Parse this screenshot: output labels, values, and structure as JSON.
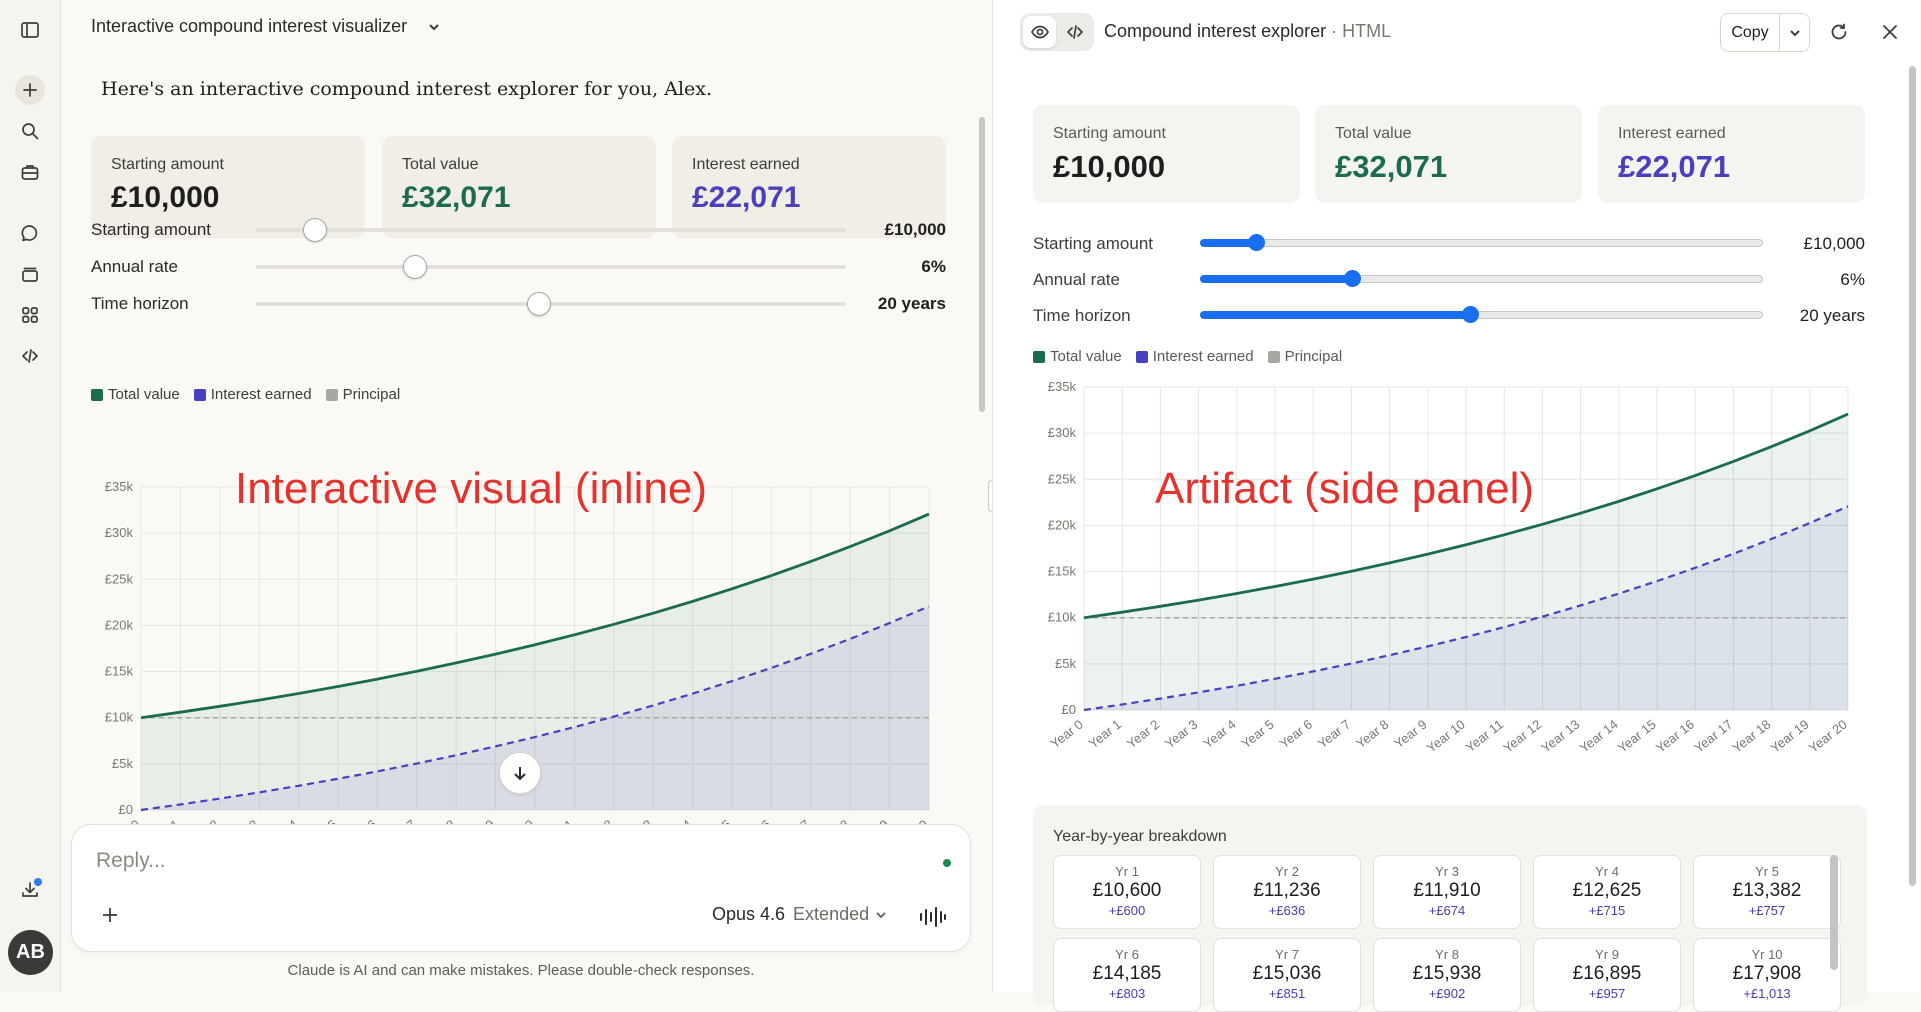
{
  "sidebar": {
    "icons": [
      "sidebar-toggle-icon",
      "new-chat-icon",
      "search-icon",
      "briefcase-icon",
      "chats-icon",
      "projects-icon",
      "artifacts-icon",
      "code-icon",
      "download-icon"
    ],
    "avatar_initials": "AB"
  },
  "chat": {
    "title": "Interactive compound interest visualizer",
    "greeting": "Here's an interactive compound interest explorer for you, Alex.",
    "overlay_label": "Interactive visual (inline)",
    "composer_placeholder": "Reply...",
    "model_name": "Opus 4.6",
    "model_mode": "Extended",
    "disclaimer": "Claude is AI and can make mistakes. Please double-check responses."
  },
  "artifact": {
    "title": "Compound interest explorer",
    "type_suffix": "HTML",
    "copy_label": "Copy",
    "overlay_label": "Artifact (side panel)",
    "breakdown_title": "Year-by-year breakdown",
    "breakdown": [
      {
        "label": "Yr 1",
        "value": "£10,600",
        "delta": "+£600"
      },
      {
        "label": "Yr 2",
        "value": "£11,236",
        "delta": "+£636"
      },
      {
        "label": "Yr 3",
        "value": "£11,910",
        "delta": "+£674"
      },
      {
        "label": "Yr 4",
        "value": "£12,625",
        "delta": "+£715"
      },
      {
        "label": "Yr 5",
        "value": "£13,382",
        "delta": "+£757"
      },
      {
        "label": "Yr 6",
        "value": "£14,185",
        "delta": "+£803"
      },
      {
        "label": "Yr 7",
        "value": "£15,036",
        "delta": "+£851"
      },
      {
        "label": "Yr 8",
        "value": "£15,938",
        "delta": "+£902"
      },
      {
        "label": "Yr 9",
        "value": "£16,895",
        "delta": "+£957"
      },
      {
        "label": "Yr 10",
        "value": "£17,908",
        "delta": "+£1,013"
      }
    ]
  },
  "summary": {
    "starting_label": "Starting amount",
    "starting_value": "£10,000",
    "total_label": "Total value",
    "total_value": "£32,071",
    "interest_label": "Interest earned",
    "interest_value": "£22,071"
  },
  "controls": {
    "starting": {
      "label": "Starting amount",
      "display": "£10,000",
      "fraction": 0.1
    },
    "rate": {
      "label": "Annual rate",
      "display": "6%",
      "fraction": 0.27
    },
    "horizon": {
      "label": "Time horizon",
      "display": "20 years",
      "fraction": 0.48
    }
  },
  "legend": {
    "total": "Total value",
    "interest": "Interest earned",
    "principal": "Principal"
  },
  "colors": {
    "total": "#1c6b4f",
    "interest": "#4a3fbf",
    "principal": "#a8a8a3",
    "accent_slider": "#1a6ef0",
    "overlay": "#e5322d"
  },
  "chart_data": {
    "type": "line",
    "title": "",
    "xlabel": "",
    "ylabel": "",
    "categories": [
      "Year 0",
      "Year 1",
      "Year 2",
      "Year 3",
      "Year 4",
      "Year 5",
      "Year 6",
      "Year 7",
      "Year 8",
      "Year 9",
      "Year 10",
      "Year 11",
      "Year 12",
      "Year 13",
      "Year 14",
      "Year 15",
      "Year 16",
      "Year 17",
      "Year 18",
      "Year 19",
      "Year 20"
    ],
    "y_ticks": [
      "£0",
      "£5k",
      "£10k",
      "£15k",
      "£20k",
      "£25k",
      "£30k",
      "£35k"
    ],
    "ylim": [
      0,
      35000
    ],
    "series": [
      {
        "name": "Total value",
        "style": "solid",
        "values": [
          10000,
          10600,
          11236,
          11910,
          12625,
          13382,
          14185,
          15036,
          15938,
          16895,
          17908,
          18983,
          20122,
          21329,
          22609,
          23966,
          25404,
          26928,
          28543,
          30256,
          32071
        ]
      },
      {
        "name": "Interest earned",
        "style": "dashed",
        "values": [
          0,
          600,
          1236,
          1910,
          2625,
          3382,
          4185,
          5036,
          5938,
          6895,
          7908,
          8983,
          10122,
          11329,
          12609,
          13966,
          15404,
          16928,
          18543,
          20256,
          22071
        ]
      },
      {
        "name": "Principal",
        "style": "dashed",
        "values": [
          10000,
          10000,
          10000,
          10000,
          10000,
          10000,
          10000,
          10000,
          10000,
          10000,
          10000,
          10000,
          10000,
          10000,
          10000,
          10000,
          10000,
          10000,
          10000,
          10000,
          10000
        ]
      }
    ]
  }
}
